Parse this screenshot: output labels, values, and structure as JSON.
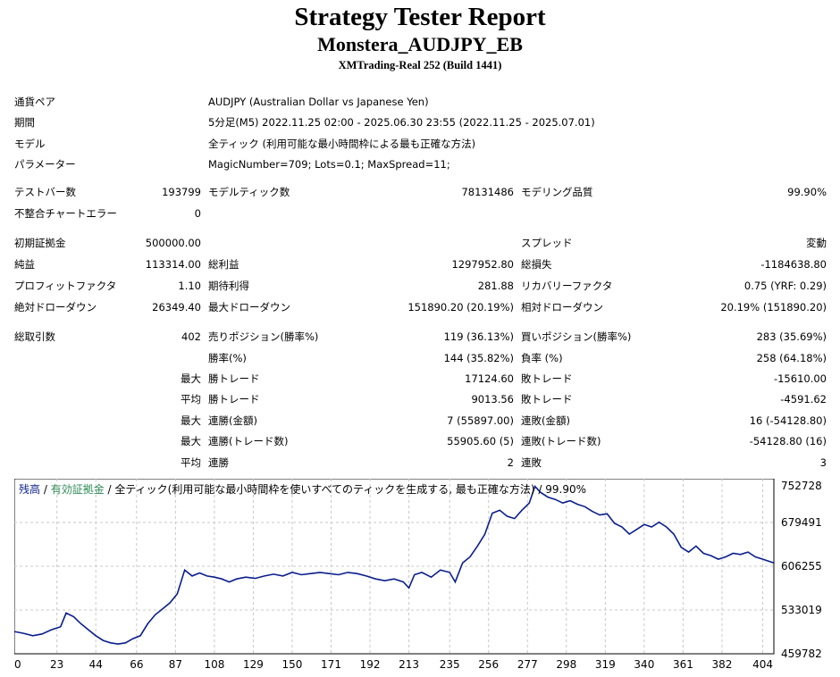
{
  "header": {
    "title": "Strategy Tester Report",
    "ea_name": "Monstera_AUDJPY_EB",
    "server": "XMTrading-Real 252 (Build 1441)"
  },
  "settings": {
    "symbol_label": "通貨ペア",
    "symbol_value": "AUDJPY (Australian Dollar vs Japanese Yen)",
    "period_label": "期間",
    "period_value": "5分足(M5) 2022.11.25 02:00 - 2025.06.30 23:55 (2022.11.25 - 2025.07.01)",
    "model_label": "モデル",
    "model_value": "全ティック (利用可能な最小時間枠による最も正確な方法)",
    "params_label": "パラメーター",
    "params_value": "MagicNumber=709; Lots=0.1; MaxSpread=11;"
  },
  "stats": {
    "bars_label": "テストバー数",
    "bars_value": "193799",
    "ticks_label": "モデルティック数",
    "ticks_value": "78131486",
    "quality_label": "モデリング品質",
    "quality_value": "99.90%",
    "mismatch_label": "不整合チャートエラー",
    "mismatch_value": "0",
    "deposit_label": "初期証拠金",
    "deposit_value": "500000.00",
    "spread_label": "スプレッド",
    "spread_value": "変動",
    "net_label": "純益",
    "net_value": "113314.00",
    "gross_profit_label": "総利益",
    "gross_profit_value": "1297952.80",
    "gross_loss_label": "総損失",
    "gross_loss_value": "-1184638.80",
    "pf_label": "プロフィットファクタ",
    "pf_value": "1.10",
    "payoff_label": "期待利得",
    "payoff_value": "281.88",
    "recovery_label": "リカバリーファクタ",
    "recovery_value": "0.75 (YRF: 0.29)",
    "abs_dd_label": "絶対ドローダウン",
    "abs_dd_value": "26349.40",
    "max_dd_label": "最大ドローダウン",
    "max_dd_value": "151890.20 (20.19%)",
    "rel_dd_label": "相対ドローダウン",
    "rel_dd_value": "20.19% (151890.20)",
    "total_trades_label": "総取引数",
    "total_trades_value": "402",
    "short_label": "売りポジション(勝率%)",
    "short_value": "119 (36.13%)",
    "long_label": "買いポジション(勝率%)",
    "long_value": "283 (35.69%)",
    "win_pct_label": "勝率(%)",
    "win_pct_value": "144 (35.82%)",
    "loss_pct_label": "負率 (%)",
    "loss_pct_value": "258 (64.18%)",
    "max_prefix": "最大",
    "avg_prefix": "平均",
    "largest_win_label": "勝トレード",
    "largest_win_value": "17124.60",
    "largest_loss_label": "敗トレード",
    "largest_loss_value": "-15610.00",
    "avg_win_label": "勝トレード",
    "avg_win_value": "9013.56",
    "avg_loss_label": "敗トレード",
    "avg_loss_value": "-4591.62",
    "max_cons_wins_label": "連勝(金額)",
    "max_cons_wins_value": "7 (55897.00)",
    "max_cons_losses_label": "連敗(金額)",
    "max_cons_losses_value": "16 (-54128.80)",
    "max_cons_profit_label": "連勝(トレード数)",
    "max_cons_profit_value": "55905.60 (5)",
    "max_cons_loss_label": "連敗(トレード数)",
    "max_cons_loss_value": "-54128.80 (16)",
    "avg_cons_wins_label": "連勝",
    "avg_cons_wins_value": "2",
    "avg_cons_losses_label": "連敗",
    "avg_cons_losses_value": "3"
  },
  "chart_legend": {
    "balance": "残高",
    "sep1": " / ",
    "equity": "有効証拠金",
    "rest": " / 全ティック(利用可能な最小時間枠を使いすべてのティックを生成する, 最も正確な方法) / 99.90%"
  },
  "colors": {
    "balance": "#0a1e8c",
    "equity": "#2e8b57",
    "grid": "#c8c8c8"
  },
  "chart_data": {
    "type": "line",
    "x_ticks": [
      "0",
      "23",
      "44",
      "66",
      "87",
      "108",
      "129",
      "150",
      "171",
      "192",
      "213",
      "235",
      "256",
      "277",
      "298",
      "319",
      "340",
      "361",
      "382",
      "404"
    ],
    "y_ticks": [
      "752728",
      "679491",
      "606255",
      "533019",
      "459782"
    ],
    "ylim": [
      459782,
      752728
    ],
    "xlim": [
      0,
      410
    ],
    "series": [
      {
        "name": "残高",
        "x": [
          0,
          5,
          10,
          15,
          20,
          25,
          28,
          32,
          36,
          40,
          44,
          48,
          52,
          56,
          60,
          64,
          68,
          72,
          76,
          80,
          84,
          88,
          92,
          96,
          100,
          104,
          108,
          112,
          116,
          120,
          125,
          130,
          135,
          140,
          145,
          150,
          155,
          160,
          165,
          170,
          175,
          180,
          185,
          190,
          195,
          200,
          205,
          210,
          213,
          216,
          220,
          225,
          230,
          235,
          238,
          242,
          246,
          250,
          254,
          258,
          262,
          266,
          270,
          274,
          278,
          281,
          284,
          288,
          292,
          296,
          300,
          304,
          308,
          312,
          316,
          320,
          324,
          328,
          332,
          336,
          340,
          344,
          348,
          352,
          356,
          360,
          364,
          368,
          372,
          376,
          380,
          384,
          388,
          392,
          396,
          400,
          404,
          410
        ],
        "y": [
          497000,
          494000,
          490000,
          493000,
          500000,
          505000,
          528000,
          522000,
          510000,
          500000,
          490000,
          482000,
          478000,
          476000,
          478000,
          485000,
          490000,
          510000,
          525000,
          535000,
          545000,
          560000,
          600000,
          590000,
          595000,
          590000,
          588000,
          585000,
          580000,
          585000,
          588000,
          586000,
          590000,
          593000,
          590000,
          596000,
          592000,
          594000,
          596000,
          594000,
          592000,
          596000,
          594000,
          590000,
          585000,
          582000,
          585000,
          580000,
          570000,
          592000,
          596000,
          588000,
          600000,
          596000,
          580000,
          612000,
          622000,
          640000,
          660000,
          695000,
          700000,
          690000,
          686000,
          700000,
          712000,
          740000,
          730000,
          722000,
          718000,
          712000,
          716000,
          710000,
          706000,
          698000,
          692000,
          694000,
          678000,
          672000,
          660000,
          668000,
          676000,
          672000,
          680000,
          672000,
          660000,
          638000,
          630000,
          640000,
          628000,
          624000,
          618000,
          622000,
          628000,
          626000,
          630000,
          622000,
          618000,
          612000
        ]
      }
    ]
  }
}
